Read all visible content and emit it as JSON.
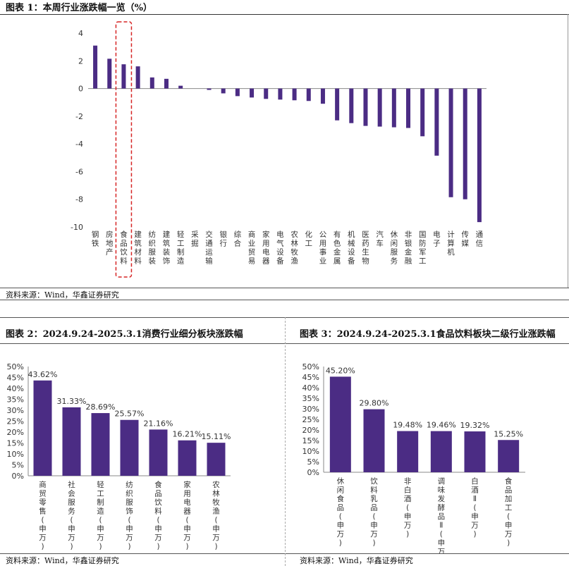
{
  "colors": {
    "bar": "#4B2C84",
    "highlight": "#D62424",
    "axis": "#888888",
    "text": "#333333"
  },
  "chart_data": [
    {
      "id": "fig1",
      "type": "bar",
      "title": "图表 1：本周行业涨跌幅一览（%）",
      "categories": [
        "钢铁",
        "房地产",
        "食品饮料",
        "建筑材料",
        "纺织服装",
        "建筑装饰",
        "轻工制造",
        "采掘",
        "交通运输",
        "银行",
        "综合",
        "商业贸易",
        "家用电器",
        "电气设备",
        "农林牧渔",
        "化工",
        "公用事业",
        "有色金属",
        "机械设备",
        "医药生物",
        "汽车",
        "休闲服务",
        "非银金融",
        "国防军工",
        "电子",
        "计算机",
        "传媒",
        "通信"
      ],
      "values": [
        3.1,
        2.15,
        1.75,
        1.6,
        0.8,
        0.7,
        0.2,
        0.0,
        -0.1,
        -0.35,
        -0.55,
        -0.65,
        -0.75,
        -0.8,
        -0.85,
        -0.9,
        -1.1,
        -2.3,
        -2.5,
        -2.7,
        -2.75,
        -2.8,
        -2.85,
        -3.45,
        -4.85,
        -7.85,
        -8.0,
        -9.65
      ],
      "ylim": [
        -10,
        4
      ],
      "yticks": [
        4,
        2,
        0,
        -2,
        -4,
        -6,
        -8,
        -10
      ],
      "highlight_category": "食品饮料",
      "source": "资料来源：Wind，华鑫证券研究"
    },
    {
      "id": "fig2",
      "type": "bar",
      "title": "图表 2：2024.9.24-2025.3.1消费行业细分板块涨跌幅",
      "categories": [
        "商贸零售(申万)",
        "社会服务(申万)",
        "轻工制造(申万)",
        "纺织服饰(申万)",
        "食品饮料(申万)",
        "家用电器(申万)",
        "农林牧渔(申万)"
      ],
      "values": [
        43.62,
        31.33,
        28.69,
        25.57,
        21.16,
        16.21,
        15.11
      ],
      "value_labels": [
        "43.62%",
        "31.33%",
        "28.69%",
        "25.57%",
        "21.16%",
        "16.21%",
        "15.11%"
      ],
      "ylim": [
        0,
        50
      ],
      "yticks": [
        "0%",
        "5%",
        "10%",
        "15%",
        "20%",
        "25%",
        "30%",
        "35%",
        "40%",
        "45%",
        "50%"
      ],
      "source": "资料来源：Wind，华鑫证券研究"
    },
    {
      "id": "fig3",
      "type": "bar",
      "title": "图表 3：2024.9.24-2025.3.1食品饮料板块二级行业涨跌幅",
      "categories": [
        "休闲食品(申万)",
        "饮料乳品(申万)",
        "非白酒(申万)",
        "调味发酵品Ⅱ(申万)",
        "白酒Ⅱ(申万)",
        "食品加工(申万)"
      ],
      "values": [
        45.2,
        29.8,
        19.48,
        19.46,
        19.32,
        15.25
      ],
      "value_labels": [
        "45.20%",
        "29.80%",
        "19.48%",
        "19.46%",
        "19.32%",
        "15.25%"
      ],
      "ylim": [
        0,
        50
      ],
      "yticks": [
        "0%",
        "5%",
        "10%",
        "15%",
        "20%",
        "25%",
        "30%",
        "35%",
        "40%",
        "45%",
        "50%"
      ],
      "source": "资料来源：Wind，华鑫证券研究"
    }
  ]
}
